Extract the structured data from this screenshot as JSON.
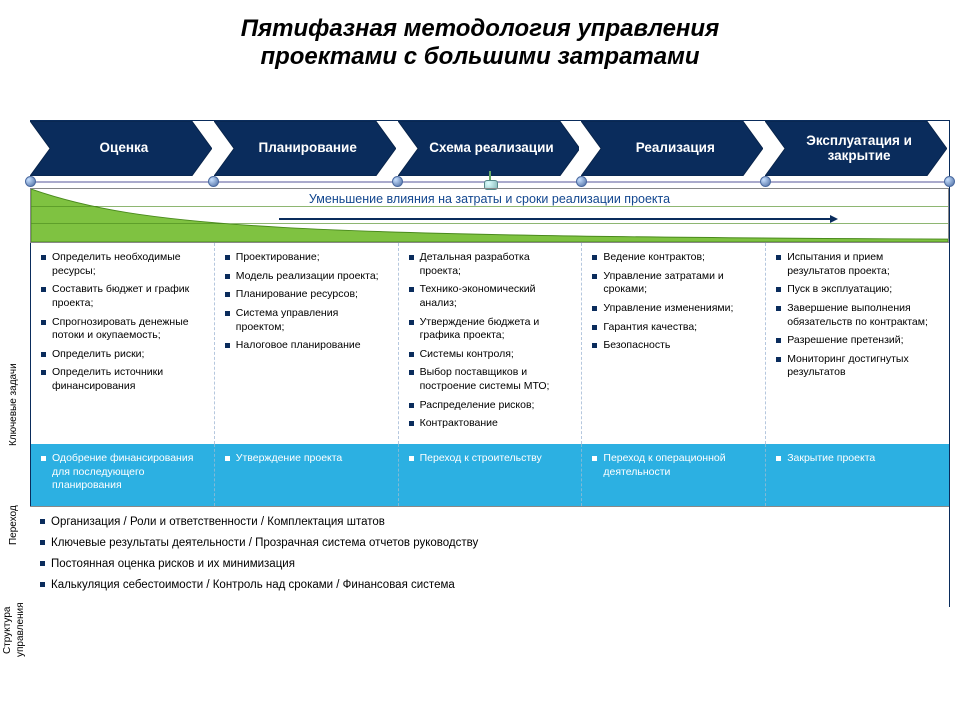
{
  "title_line1": "Пятифазная методология управления",
  "title_line2": "проектами с большими затратами",
  "colors": {
    "navy": "#0a2c5c",
    "navy_stroke": "#082349",
    "green_fill": "#7fc241",
    "green_stroke": "#4a8a1d",
    "cyan": "#2cb0e2",
    "text_blue": "#13478f",
    "grid_dash": "#b5c7de"
  },
  "phases": [
    {
      "label": "Оценка"
    },
    {
      "label": "Планирование"
    },
    {
      "label": "Схема реализации"
    },
    {
      "label": "Реализация"
    },
    {
      "label": "Эксплуатация и закрытие"
    }
  ],
  "timeline_marker_phase_index": 2,
  "influence_text": "Уменьшение влияния на затраты и сроки реализации проекта",
  "side_labels": {
    "tasks": "Ключевые задачи",
    "transition": "Переход",
    "structure_line1": "Структура",
    "structure_line2": "управления"
  },
  "tasks": [
    [
      "Определить необходимые ресурсы;",
      "Составить бюджет и график проекта;",
      "Спрогнозировать денежные потоки и окупаемость;",
      "Определить риски;",
      "Определить источники финансирования"
    ],
    [
      "Проектирование;",
      "Модель реализации проекта;",
      "Планирование ресурсов;",
      "Система управления проектом;",
      "Налоговое планирование"
    ],
    [
      "Детальная разработка проекта;",
      "Технико-экономический анализ;",
      "Утверждение бюджета и графика проекта;",
      "Системы контроля;",
      "Выбор поставщиков и построение системы МТО;",
      "Распределение рисков;",
      "Контрактование"
    ],
    [
      "Ведение контрактов;",
      "Управление затратами и сроками;",
      "Управление изменениями;",
      "Гарантия качества;",
      "Безопасность"
    ],
    [
      "Испытания и прием результатов проекта;",
      "Пуск в эксплуатацию;",
      "Завершение выполнения обязательств по контрактам;",
      "Разрешение претензий;",
      "Мониторинг достигнутых результатов"
    ]
  ],
  "transitions": [
    "Одобрение финансирования для последующего планирования",
    "Утверждение проекта",
    "Переход к строительству",
    "Переход к операционной деятельности",
    "Закрытие проекта"
  ],
  "structure": [
    "Организация / Роли и ответственности / Комплектация штатов",
    "Ключевые результаты деятельности / Прозрачная система отчетов руководству",
    "Постоянная оценка рисков и их минимизация",
    "Калькуляция себестоимости / Контроль над сроками / Финансовая система"
  ]
}
